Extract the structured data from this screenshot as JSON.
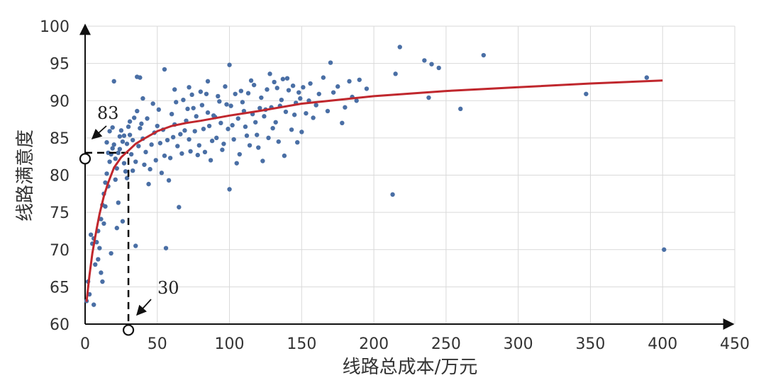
{
  "chart_data": {
    "type": "scatter",
    "title": "",
    "xlabel": "线路总成本/万元",
    "ylabel": "线路满意度",
    "xlim": [
      0,
      450
    ],
    "ylim": [
      60,
      100
    ],
    "x_ticks": [
      0,
      50,
      100,
      150,
      200,
      250,
      300,
      350,
      400,
      450
    ],
    "y_ticks": [
      60,
      65,
      70,
      75,
      80,
      85,
      90,
      95,
      100
    ],
    "grid": true,
    "legend": "none",
    "colors": {
      "points": "#4a6fa5",
      "curve": "#c0272d",
      "guide": "#000000"
    },
    "annotations": [
      {
        "text": "83",
        "x": 30,
        "y": 83
      },
      {
        "text": "30",
        "x": 30,
        "y": 60
      }
    ],
    "fit_curve": {
      "x": [
        1,
        3,
        5,
        8,
        10,
        13,
        16,
        20,
        25,
        30,
        35,
        40,
        50,
        60,
        70,
        80,
        100,
        120,
        150,
        180,
        200,
        250,
        300,
        350,
        400
      ],
      "y": [
        63.0,
        66.5,
        69.5,
        72.8,
        74.8,
        77.2,
        79.0,
        81.0,
        82.4,
        83.3,
        84.2,
        84.8,
        85.9,
        86.6,
        87.0,
        87.3,
        88.0,
        88.6,
        89.6,
        90.2,
        90.6,
        91.3,
        91.8,
        92.3,
        92.7
      ]
    },
    "series": [
      {
        "points": [
          [
            1,
            63.1
          ],
          [
            2,
            65.7
          ],
          [
            3,
            64.0
          ],
          [
            4,
            72.0
          ],
          [
            5,
            70.8
          ],
          [
            6,
            71.5
          ],
          [
            7,
            68.0
          ],
          [
            8,
            71.0
          ],
          [
            9,
            72.5
          ],
          [
            10,
            70.2
          ],
          [
            11,
            74.1
          ],
          [
            12,
            76.0
          ],
          [
            13,
            77.5
          ],
          [
            14,
            79.0
          ],
          [
            15,
            80.2
          ],
          [
            16,
            78.5
          ],
          [
            17,
            81.8
          ],
          [
            18,
            82.8
          ],
          [
            19,
            83.6
          ],
          [
            20,
            84.1
          ],
          [
            21,
            82.2
          ],
          [
            22,
            80.9
          ],
          [
            23,
            83.0
          ],
          [
            24,
            85.2
          ],
          [
            25,
            86.0
          ],
          [
            26,
            84.5
          ],
          [
            27,
            81.6
          ],
          [
            28,
            80.5
          ],
          [
            29,
            79.6
          ],
          [
            30,
            86.5
          ],
          [
            31,
            85.4
          ],
          [
            32,
            82.8
          ],
          [
            33,
            84.7
          ],
          [
            34,
            87.7
          ],
          [
            35,
            81.8
          ],
          [
            36,
            88.6
          ],
          [
            38,
            86.3
          ],
          [
            40,
            84.9
          ],
          [
            42,
            83.1
          ],
          [
            45,
            80.8
          ],
          [
            48,
            85.7
          ],
          [
            50,
            86.6
          ],
          [
            52,
            84.3
          ],
          [
            55,
            82.6
          ],
          [
            58,
            79.3
          ],
          [
            60,
            88.2
          ],
          [
            62,
            86.8
          ],
          [
            64,
            83.9
          ],
          [
            66,
            85.5
          ],
          [
            68,
            90.1
          ],
          [
            70,
            87.3
          ],
          [
            72,
            84.8
          ],
          [
            75,
            89.0
          ],
          [
            78,
            82.7
          ],
          [
            80,
            91.2
          ],
          [
            82,
            86.2
          ],
          [
            85,
            88.4
          ],
          [
            88,
            84.6
          ],
          [
            90,
            87.8
          ],
          [
            92,
            90.6
          ],
          [
            95,
            83.4
          ],
          [
            98,
            89.5
          ],
          [
            100,
            94.8
          ],
          [
            102,
            86.7
          ],
          [
            105,
            81.6
          ],
          [
            108,
            91.3
          ],
          [
            110,
            88.6
          ],
          [
            112,
            85.3
          ],
          [
            115,
            92.7
          ],
          [
            118,
            87.1
          ],
          [
            120,
            83.7
          ],
          [
            122,
            90.4
          ],
          [
            125,
            88.8
          ],
          [
            128,
            93.6
          ],
          [
            130,
            86.3
          ],
          [
            133,
            91.7
          ],
          [
            135,
            89.3
          ],
          [
            138,
            82.6
          ],
          [
            140,
            93.0
          ],
          [
            145,
            88.1
          ],
          [
            148,
            91.1
          ],
          [
            150,
            85.8
          ],
          [
            155,
            90.0
          ],
          [
            160,
            89.4
          ],
          [
            165,
            93.1
          ],
          [
            170,
            95.1
          ],
          [
            175,
            91.9
          ],
          [
            180,
            89.1
          ],
          [
            185,
            90.5
          ],
          [
            190,
            92.8
          ],
          [
            26,
            73.8
          ],
          [
            35,
            70.5
          ],
          [
            56,
            70.2
          ],
          [
            44,
            78.8
          ],
          [
            65,
            75.7
          ],
          [
            100,
            78.1
          ],
          [
            12,
            65.7
          ],
          [
            6,
            62.6
          ],
          [
            18,
            69.5
          ],
          [
            22,
            72.9
          ],
          [
            213,
            77.4
          ],
          [
            215,
            93.6
          ],
          [
            218,
            97.2
          ],
          [
            235,
            95.4
          ],
          [
            238,
            90.4
          ],
          [
            240,
            94.9
          ],
          [
            245,
            94.4
          ],
          [
            260,
            88.9
          ],
          [
            276,
            96.1
          ],
          [
            347,
            90.9
          ],
          [
            389,
            93.1
          ],
          [
            401,
            70.0
          ],
          [
            20,
            92.6
          ],
          [
            38,
            93.1
          ],
          [
            55,
            94.2
          ],
          [
            36,
            93.2
          ],
          [
            40,
            90.3
          ],
          [
            62,
            91.5
          ],
          [
            72,
            91.8
          ],
          [
            85,
            92.6
          ],
          [
            15,
            84.4
          ],
          [
            16,
            83.0
          ],
          [
            17,
            85.9
          ],
          [
            19,
            86.4
          ],
          [
            21,
            79.4
          ],
          [
            24,
            83.5
          ],
          [
            27,
            85.3
          ],
          [
            29,
            84.2
          ],
          [
            31,
            87.2
          ],
          [
            33,
            80.6
          ],
          [
            37,
            83.9
          ],
          [
            39,
            86.9
          ],
          [
            41,
            81.4
          ],
          [
            43,
            87.6
          ],
          [
            46,
            84.1
          ],
          [
            47,
            89.6
          ],
          [
            49,
            82.0
          ],
          [
            51,
            88.8
          ],
          [
            53,
            80.3
          ],
          [
            54,
            86.1
          ],
          [
            57,
            84.7
          ],
          [
            59,
            82.3
          ],
          [
            61,
            85.1
          ],
          [
            63,
            89.8
          ],
          [
            67,
            82.9
          ],
          [
            69,
            86.0
          ],
          [
            71,
            88.9
          ],
          [
            73,
            83.2
          ],
          [
            74,
            90.8
          ],
          [
            76,
            85.9
          ],
          [
            77,
            87.9
          ],
          [
            79,
            84.0
          ],
          [
            81,
            89.4
          ],
          [
            83,
            83.1
          ],
          [
            84,
            90.9
          ],
          [
            86,
            86.6
          ],
          [
            87,
            82.0
          ],
          [
            89,
            88.0
          ],
          [
            91,
            85.0
          ],
          [
            93,
            89.9
          ],
          [
            94,
            87.0
          ],
          [
            96,
            84.2
          ],
          [
            97,
            91.9
          ],
          [
            99,
            86.2
          ],
          [
            101,
            89.3
          ],
          [
            103,
            84.8
          ],
          [
            104,
            90.9
          ],
          [
            106,
            87.6
          ],
          [
            107,
            82.8
          ],
          [
            109,
            89.8
          ],
          [
            111,
            86.5
          ],
          [
            113,
            91.0
          ],
          [
            114,
            84.0
          ],
          [
            116,
            88.2
          ],
          [
            117,
            92.1
          ],
          [
            119,
            85.4
          ],
          [
            121,
            89.0
          ],
          [
            123,
            81.9
          ],
          [
            124,
            87.9
          ],
          [
            126,
            91.5
          ],
          [
            127,
            85.0
          ],
          [
            129,
            89.1
          ],
          [
            131,
            92.5
          ],
          [
            132,
            87.1
          ],
          [
            134,
            84.5
          ],
          [
            136,
            90.1
          ],
          [
            137,
            92.9
          ],
          [
            139,
            88.5
          ],
          [
            141,
            91.4
          ],
          [
            143,
            86.1
          ],
          [
            144,
            92.0
          ],
          [
            146,
            89.7
          ],
          [
            147,
            84.4
          ],
          [
            149,
            90.3
          ],
          [
            151,
            91.8
          ],
          [
            153,
            88.3
          ],
          [
            156,
            92.3
          ],
          [
            158,
            87.7
          ],
          [
            162,
            90.9
          ],
          [
            168,
            88.6
          ],
          [
            172,
            91.1
          ],
          [
            178,
            87.0
          ],
          [
            183,
            92.6
          ],
          [
            188,
            90.0
          ],
          [
            195,
            91.6
          ],
          [
            9,
            68.7
          ],
          [
            11,
            66.9
          ],
          [
            13,
            73.5
          ],
          [
            14,
            75.8
          ],
          [
            23,
            76.3
          ]
        ]
      }
    ]
  }
}
